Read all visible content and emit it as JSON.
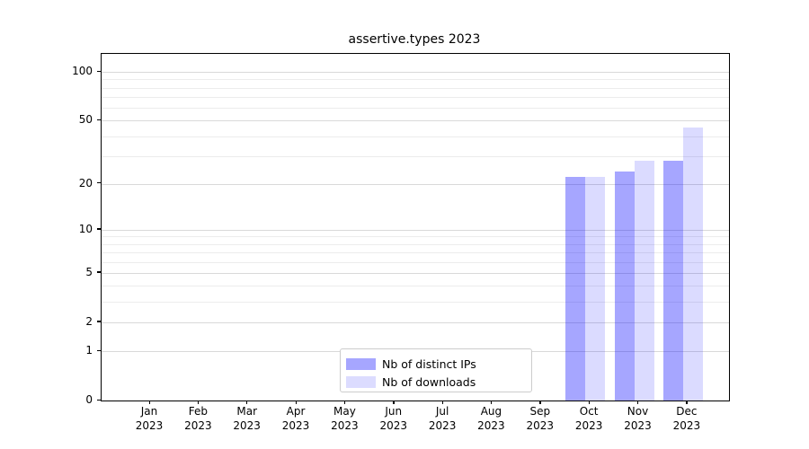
{
  "window": {
    "title": "assertive.types 2023"
  },
  "chart_data": {
    "type": "bar",
    "title": "assertive.types 2023",
    "categories": [
      "Jan 2023",
      "Feb 2023",
      "Mar 2023",
      "Apr 2023",
      "May 2023",
      "Jun 2023",
      "Jul 2023",
      "Aug 2023",
      "Sep 2023",
      "Oct 2023",
      "Nov 2023",
      "Dec 2023"
    ],
    "category_months": [
      "Jan",
      "Feb",
      "Mar",
      "Apr",
      "May",
      "Jun",
      "Jul",
      "Aug",
      "Sep",
      "Oct",
      "Nov",
      "Dec"
    ],
    "category_year": "2023",
    "series": [
      {
        "name": "Nb of distinct IPs",
        "color": "#a6a6ff",
        "fill": "rgba(0,0,255,0.35)",
        "values": [
          0,
          0,
          0,
          0,
          0,
          0,
          0,
          0,
          0,
          22,
          24,
          28
        ]
      },
      {
        "name": "Nb of downloads",
        "color": "#dcdcff",
        "fill": "rgba(0,0,255,0.14)",
        "values": [
          0,
          0,
          0,
          0,
          0,
          0,
          0,
          0,
          0,
          22,
          28,
          45
        ]
      }
    ],
    "y_scale": "log10(1+x)",
    "y_axis_ticks": [
      0,
      1,
      2,
      5,
      10,
      20,
      50,
      100
    ],
    "y_minor_gridlines": [
      3,
      4,
      6,
      7,
      8,
      9,
      30,
      40,
      60,
      70,
      80,
      90
    ],
    "y_top_value": 129,
    "xlabel": "",
    "ylabel": "",
    "grid": true,
    "legend_position": "lower center",
    "axis_color": "#000000",
    "major_grid_color": "#d9d9d9",
    "minor_grid_color": "#ececec"
  }
}
